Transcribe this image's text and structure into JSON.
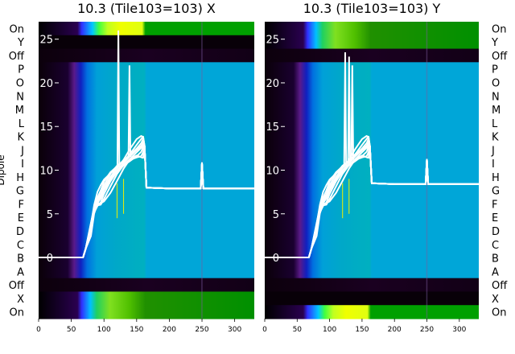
{
  "chart_data": [
    {
      "type": "line",
      "title": "10.3 (Tile103=103) X",
      "ylabel": "Dipole",
      "xlim": [
        0,
        330
      ],
      "xticks": [
        0,
        50,
        100,
        150,
        200,
        250,
        300
      ],
      "ylim": [
        -7,
        27
      ],
      "yticks": [
        0,
        5,
        10,
        15,
        20,
        25
      ],
      "row_labels": [
        "On",
        "Y",
        "Off",
        "P",
        "O",
        "N",
        "M",
        "L",
        "K",
        "J",
        "I",
        "H",
        "G",
        "F",
        "E",
        "D",
        "C",
        "B",
        "A",
        "Off",
        "X",
        "On"
      ],
      "background": "heatmap (waterfall of 22 dipole/state rows vs x)",
      "series_style": "white overlaid lines, one per dipole",
      "envelope_x": [
        0,
        68,
        72,
        80,
        85,
        90,
        95,
        100,
        110,
        120,
        130,
        140,
        150,
        157,
        160,
        162,
        165,
        200,
        248,
        250,
        252,
        330
      ],
      "envelope_y": [
        0,
        0,
        1.0,
        3.5,
        5.5,
        6.5,
        7.0,
        7.8,
        9.0,
        10.0,
        10.8,
        11.6,
        12.3,
        12.7,
        13.0,
        12.8,
        8.0,
        7.9,
        7.9,
        10.8,
        7.9,
        7.9
      ],
      "spikes": [
        {
          "x": 122,
          "y": 26
        },
        {
          "x": 139,
          "y": 22
        }
      ]
    },
    {
      "type": "line",
      "title": "10.3 (Tile103=103) Y",
      "ylabel": "",
      "xlim": [
        0,
        330
      ],
      "xticks": [
        0,
        50,
        100,
        150,
        200,
        250,
        300
      ],
      "ylim": [
        -7,
        27
      ],
      "yticks": [
        0,
        5,
        10,
        15,
        20,
        25
      ],
      "row_labels": [
        "On",
        "Y",
        "Off",
        "P",
        "O",
        "N",
        "M",
        "L",
        "K",
        "J",
        "I",
        "H",
        "G",
        "F",
        "E",
        "D",
        "C",
        "B",
        "A",
        "Off",
        "X",
        "On"
      ],
      "background": "heatmap (waterfall of 22 dipole/state rows vs x)",
      "series_style": "white overlaid lines, one per dipole",
      "envelope_x": [
        0,
        68,
        72,
        80,
        85,
        90,
        95,
        100,
        110,
        120,
        130,
        140,
        150,
        157,
        160,
        162,
        165,
        200,
        248,
        250,
        252,
        330
      ],
      "envelope_y": [
        0,
        0,
        1.0,
        3.5,
        5.5,
        6.5,
        7.0,
        7.8,
        9.0,
        10.0,
        10.8,
        11.6,
        12.3,
        12.7,
        13.0,
        12.8,
        8.5,
        8.4,
        8.4,
        11.2,
        8.4,
        8.4
      ],
      "spikes": [
        {
          "x": 124,
          "y": 23.5
        },
        {
          "x": 130,
          "y": 23
        },
        {
          "x": 135,
          "y": 22
        }
      ]
    }
  ]
}
